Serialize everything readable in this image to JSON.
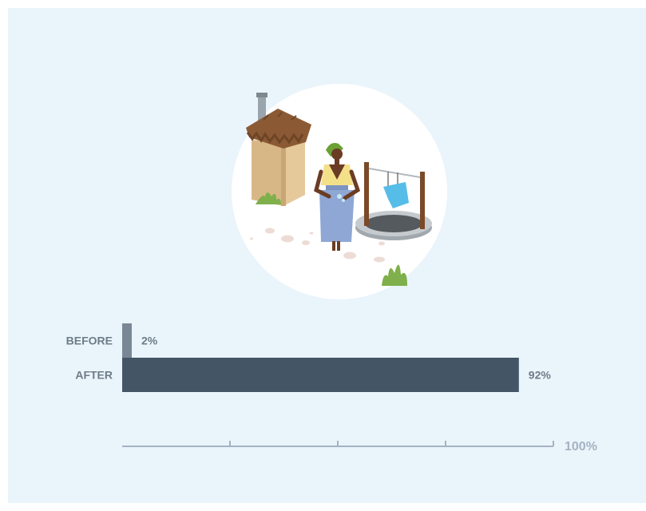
{
  "chart_data": {
    "type": "bar",
    "orientation": "horizontal",
    "categories": [
      "BEFORE",
      "AFTER"
    ],
    "values": [
      2,
      92
    ],
    "value_labels": [
      "2%",
      "92%"
    ],
    "xlim": [
      0,
      100
    ],
    "axis_end_label": "100%",
    "ticks": [
      0,
      25,
      50,
      75,
      100
    ],
    "colors": {
      "before": "#7a8895",
      "after": "#445566",
      "axis": "#a4b3c2",
      "label": "#6e7c88",
      "background": "#eaf4fb"
    }
  },
  "illustration": {
    "name": "woman-with-latrine-and-well-illustration"
  }
}
